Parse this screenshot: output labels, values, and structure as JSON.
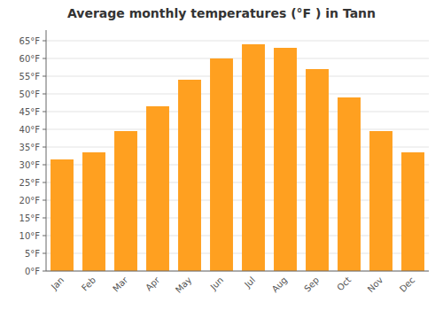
{
  "chart_data": {
    "type": "bar",
    "title": "Average monthly temperatures (°F ) in Tann",
    "categories": [
      "Jan",
      "Feb",
      "Mar",
      "Apr",
      "May",
      "Jun",
      "Jul",
      "Aug",
      "Sep",
      "Oct",
      "Nov",
      "Dec"
    ],
    "values": [
      31.5,
      33.5,
      39.5,
      46.5,
      54.0,
      60.0,
      64.0,
      63.0,
      57.0,
      49.0,
      39.5,
      33.5
    ],
    "color": "#FFA020",
    "ylim": [
      0,
      68
    ],
    "yticks": [
      {
        "value": 0,
        "label": "0°F"
      },
      {
        "value": 5,
        "label": "5°F"
      },
      {
        "value": 10,
        "label": "10°F"
      },
      {
        "value": 15,
        "label": "15°F"
      },
      {
        "value": 20,
        "label": "20°F"
      },
      {
        "value": 25,
        "label": "25°F"
      },
      {
        "value": 30,
        "label": "30°F"
      },
      {
        "value": 35,
        "label": "35°F"
      },
      {
        "value": 40,
        "label": "40°F"
      },
      {
        "value": 45,
        "label": "45°F"
      },
      {
        "value": 50,
        "label": "50°F"
      },
      {
        "value": 55,
        "label": "55°F"
      },
      {
        "value": 60,
        "label": "60°F"
      },
      {
        "value": 65,
        "label": "65°F"
      }
    ],
    "grid": true
  }
}
